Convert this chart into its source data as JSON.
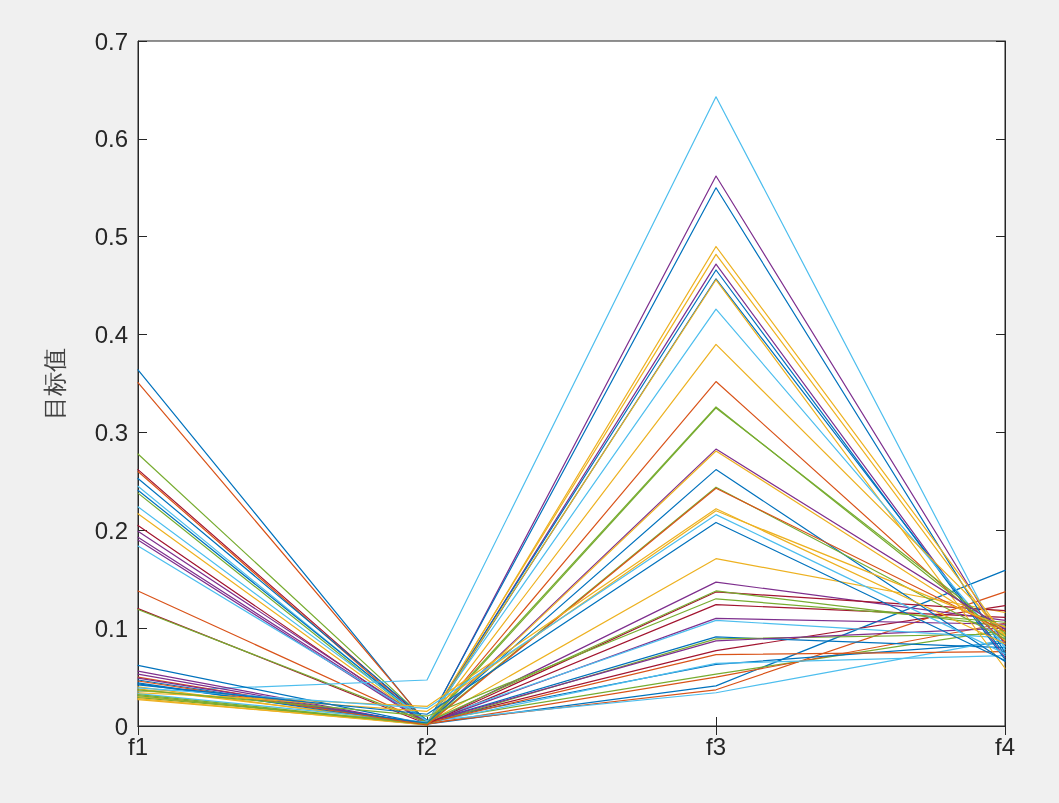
{
  "chart_data": {
    "type": "line",
    "categories": [
      "f1",
      "f2",
      "f3",
      "f4"
    ],
    "ylabel": "目标值",
    "ylim": [
      0,
      0.7
    ],
    "yticks": [
      0,
      0.1,
      0.2,
      0.3,
      0.4,
      0.5,
      0.6,
      0.7
    ],
    "grid": false,
    "marker": "none",
    "line_style": "solid",
    "series": [
      {
        "color": "#0072bd",
        "values": [
          0.364,
          0.002,
          0.041,
          0.159
        ]
      },
      {
        "color": "#d95319",
        "values": [
          0.351,
          0.003,
          0.037,
          0.137
        ]
      },
      {
        "color": "#77ac30",
        "values": [
          0.278,
          0.005,
          0.053,
          0.098
        ]
      },
      {
        "color": "#a2142f",
        "values": [
          0.262,
          0.004,
          0.077,
          0.123
        ]
      },
      {
        "color": "#d95319",
        "values": [
          0.26,
          0.002,
          0.05,
          0.105
        ]
      },
      {
        "color": "#0072bd",
        "values": [
          0.253,
          0.006,
          0.063,
          0.085
        ]
      },
      {
        "color": "#4dbeee",
        "values": [
          0.245,
          0.003,
          0.064,
          0.072
        ]
      },
      {
        "color": "#0072bd",
        "values": [
          0.241,
          0.004,
          0.091,
          0.08
        ]
      },
      {
        "color": "#77ac30",
        "values": [
          0.238,
          0.002,
          0.089,
          0.094
        ]
      },
      {
        "color": "#4dbeee",
        "values": [
          0.224,
          0.005,
          0.034,
          0.088
        ]
      },
      {
        "color": "#edb120",
        "values": [
          0.217,
          0.003,
          0.171,
          0.116
        ]
      },
      {
        "color": "#a2142f",
        "values": [
          0.205,
          0.002,
          0.124,
          0.111
        ]
      },
      {
        "color": "#7e2f8e",
        "values": [
          0.199,
          0.004,
          0.087,
          0.1
        ]
      },
      {
        "color": "#7e2f8e",
        "values": [
          0.193,
          0.003,
          0.11,
          0.104
        ]
      },
      {
        "color": "#7e2f8e",
        "values": [
          0.19,
          0.002,
          0.147,
          0.108
        ]
      },
      {
        "color": "#4dbeee",
        "values": [
          0.184,
          0.005,
          0.108,
          0.09
        ]
      },
      {
        "color": "#d95319",
        "values": [
          0.138,
          0.003,
          0.073,
          0.076
        ]
      },
      {
        "color": "#a2142f",
        "values": [
          0.12,
          0.002,
          0.137,
          0.118
        ]
      },
      {
        "color": "#77ac30",
        "values": [
          0.119,
          0.004,
          0.138,
          0.102
        ]
      },
      {
        "color": "#4dbeee",
        "values": [
          0.035,
          0.047,
          0.643,
          0.078
        ]
      },
      {
        "color": "#7e2f8e",
        "values": [
          0.056,
          0.001,
          0.562,
          0.083
        ]
      },
      {
        "color": "#0072bd",
        "values": [
          0.062,
          0.002,
          0.55,
          0.075
        ]
      },
      {
        "color": "#edb120",
        "values": [
          0.04,
          0.001,
          0.49,
          0.092
        ]
      },
      {
        "color": "#edb120",
        "values": [
          0.038,
          0.003,
          0.482,
          0.087
        ]
      },
      {
        "color": "#7e2f8e",
        "values": [
          0.053,
          0.001,
          0.472,
          0.07
        ]
      },
      {
        "color": "#0072bd",
        "values": [
          0.047,
          0.002,
          0.466,
          0.068
        ]
      },
      {
        "color": "#0072bd",
        "values": [
          0.044,
          0.001,
          0.457,
          0.073
        ]
      },
      {
        "color": "#edb120",
        "values": [
          0.03,
          0.002,
          0.456,
          0.059
        ]
      },
      {
        "color": "#4dbeee",
        "values": [
          0.033,
          0.004,
          0.426,
          0.081
        ]
      },
      {
        "color": "#edb120",
        "values": [
          0.027,
          0.002,
          0.39,
          0.096
        ]
      },
      {
        "color": "#d95319",
        "values": [
          0.05,
          0.001,
          0.352,
          0.086
        ]
      },
      {
        "color": "#77ac30",
        "values": [
          0.029,
          0.003,
          0.326,
          0.091
        ]
      },
      {
        "color": "#77ac30",
        "values": [
          0.031,
          0.001,
          0.325,
          0.095
        ]
      },
      {
        "color": "#7e2f8e",
        "values": [
          0.049,
          0.002,
          0.283,
          0.099
        ]
      },
      {
        "color": "#edb120",
        "values": [
          0.028,
          0.001,
          0.281,
          0.093
        ]
      },
      {
        "color": "#0072bd",
        "values": [
          0.043,
          0.003,
          0.262,
          0.066
        ]
      },
      {
        "color": "#77ac30",
        "values": [
          0.032,
          0.002,
          0.244,
          0.089
        ]
      },
      {
        "color": "#d95319",
        "values": [
          0.046,
          0.001,
          0.243,
          0.097
        ]
      },
      {
        "color": "#edb120",
        "values": [
          0.034,
          0.02,
          0.222,
          0.084
        ]
      },
      {
        "color": "#edb120",
        "values": [
          0.036,
          0.015,
          0.22,
          0.101
        ]
      },
      {
        "color": "#4dbeee",
        "values": [
          0.039,
          0.018,
          0.216,
          0.074
        ]
      },
      {
        "color": "#0072bd",
        "values": [
          0.042,
          0.012,
          0.208,
          0.067
        ]
      },
      {
        "color": "#77ac30",
        "values": [
          0.037,
          0.01,
          0.13,
          0.106
        ]
      }
    ]
  }
}
